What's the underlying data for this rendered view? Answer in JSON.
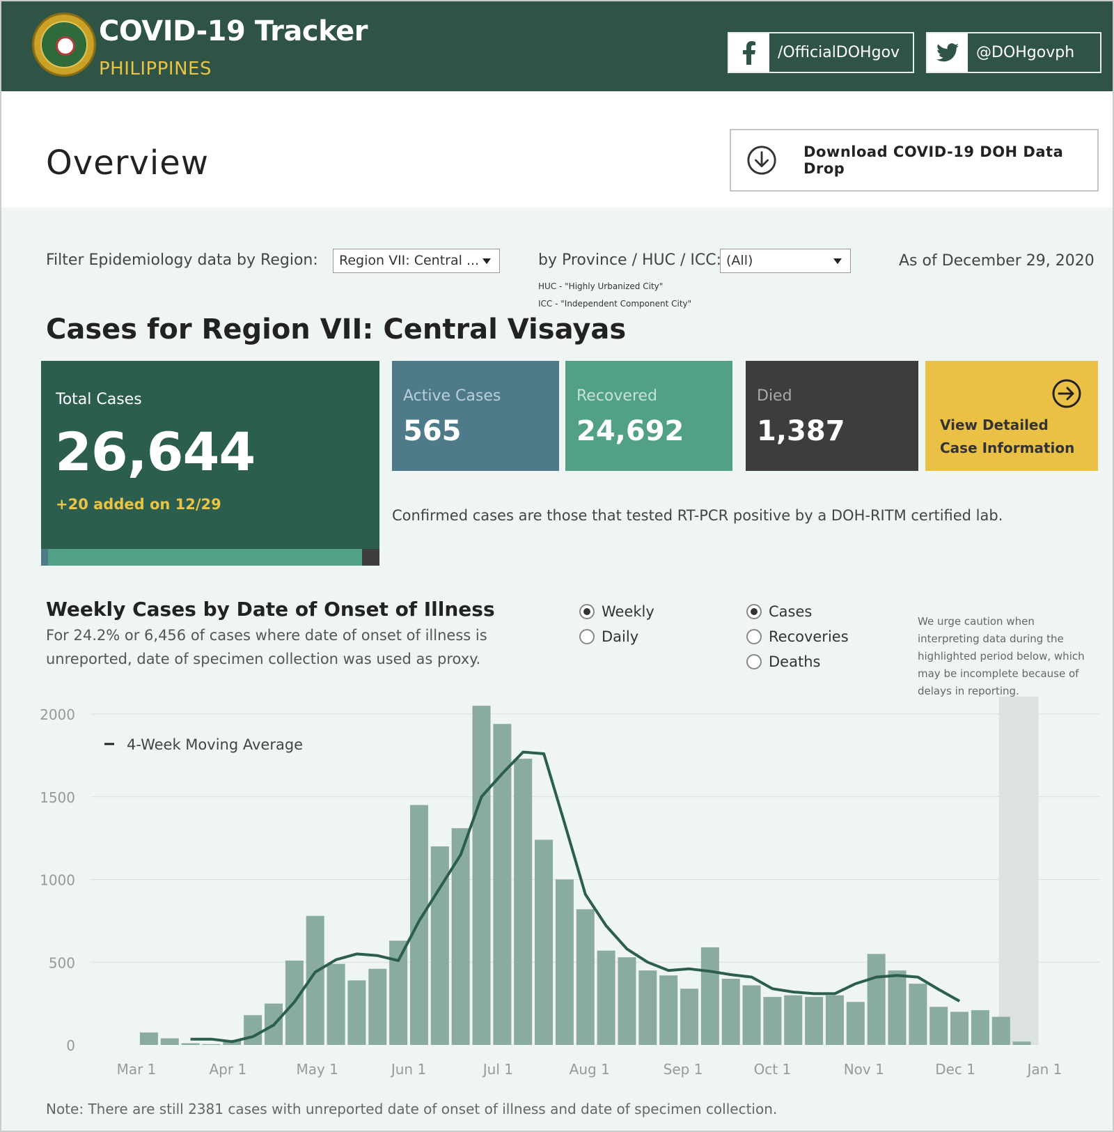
{
  "header": {
    "title": "COVID-19 Tracker",
    "subtitle": "PHILIPPINES",
    "facebook": "/OfficialDOHgov",
    "twitter": "@DOHgovph",
    "seal_icon": "doh-seal-logo"
  },
  "overview": {
    "title": "Overview",
    "download_label": "Download COVID-19 DOH Data Drop",
    "download_icon": "download-circle-icon"
  },
  "filters": {
    "region_label": "Filter Epidemiology data by Region:",
    "region_value": "Region VII: Central ...",
    "province_label": "by Province / HUC / ICC:",
    "province_value": "(All)",
    "huc_note": "HUC - \"Highly Urbanized City\"",
    "icc_note": "ICC - \"Independent Component City\"",
    "as_of": "As of December 29, 2020"
  },
  "cases": {
    "heading": "Cases for Region VII: Central Visayas",
    "total_label": "Total Cases",
    "total_value": "26,644",
    "added": "+20 added on 12/29",
    "active_label": "Active Cases",
    "active_value": "565",
    "recovered_label": "Recovered",
    "recovered_value": "24,692",
    "died_label": "Died",
    "died_value": "1,387",
    "view_line1": "View Detailed",
    "view_line2": "Case Information",
    "breakdown_fractions": {
      "active": 0.021,
      "recovered": 0.927,
      "died": 0.052
    },
    "confirmed_note": "Confirmed cases are those that tested RT-PCR positive by a DOH-RITM certified lab."
  },
  "weekly": {
    "title": "Weekly Cases by Date of Onset of Illness",
    "sub1": "For 24.2% or 6,456 of cases where date of onset of illness is",
    "sub2": "unreported, date of specimen collection was used as proxy.",
    "radios_period": [
      {
        "label": "Weekly",
        "selected": true
      },
      {
        "label": "Daily",
        "selected": false
      }
    ],
    "radios_metric": [
      {
        "label": "Cases",
        "selected": true
      },
      {
        "label": "Recoveries",
        "selected": false
      },
      {
        "label": "Deaths",
        "selected": false
      }
    ],
    "caution": [
      "We urge caution when",
      "interpreting data during the",
      "highlighted period below, which",
      "may be incomplete because of",
      "delays in reporting."
    ]
  },
  "chart_data": {
    "type": "bar",
    "legend": "4-Week Moving Average",
    "ylim": [
      0,
      2100
    ],
    "yticks": [
      0,
      500,
      1000,
      1500,
      2000
    ],
    "x_tick_labels": [
      "Mar 1",
      "Apr 1",
      "May 1",
      "Jun 1",
      "Jul 1",
      "Aug 1",
      "Sep 1",
      "Oct 1",
      "Nov 1",
      "Dec 1",
      "Jan 1"
    ],
    "x_tick_weeks": [
      0,
      4.4,
      8.7,
      13.1,
      17.4,
      21.8,
      26.3,
      30.6,
      35,
      39.4,
      43.7
    ],
    "week_offset_first": 0.6,
    "values": [
      75,
      40,
      10,
      5,
      30,
      180,
      250,
      510,
      780,
      490,
      390,
      460,
      630,
      1450,
      1200,
      1310,
      2050,
      1940,
      1730,
      1240,
      1000,
      820,
      570,
      530,
      450,
      420,
      340,
      590,
      400,
      360,
      290,
      300,
      290,
      300,
      260,
      550,
      450,
      370,
      230,
      200,
      210,
      170,
      20
    ],
    "moving_average": [
      null,
      null,
      35,
      35,
      20,
      50,
      120,
      260,
      440,
      515,
      550,
      540,
      510,
      750,
      950,
      1150,
      1500,
      1640,
      1770,
      1760,
      1340,
      910,
      720,
      580,
      500,
      450,
      460,
      445,
      425,
      410,
      340,
      320,
      310,
      310,
      370,
      410,
      420,
      410,
      335,
      265,
      null,
      null,
      null
    ],
    "highlight_weeks": [
      41.5,
      43.4
    ],
    "note": "Note: There are still 2381 cases with unreported date of onset of illness and date of specimen collection."
  }
}
